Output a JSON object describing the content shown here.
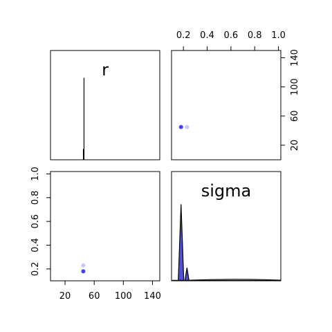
{
  "chart_data": {
    "type": "pairs",
    "variables": [
      "r",
      "sigma"
    ],
    "r_axis": {
      "lim": [
        0,
        150
      ],
      "ticks": [
        20,
        60,
        100,
        140
      ],
      "tick_labels": [
        "20",
        "60",
        "100",
        "140"
      ]
    },
    "sigma_axis": {
      "lim": [
        0.1,
        1.02
      ],
      "ticks": [
        0.2,
        0.4,
        0.6,
        0.8,
        1.0
      ],
      "tick_labels": [
        "0.2",
        "0.4",
        "0.6",
        "0.8",
        "1.0"
      ]
    },
    "panels": [
      {
        "row": 0,
        "col": 0,
        "kind": "density",
        "var": "r",
        "label": "r",
        "color": "#000000",
        "spikes": [
          {
            "x": 46,
            "height": 0.75
          }
        ]
      },
      {
        "row": 0,
        "col": 1,
        "kind": "scatter",
        "x": "sigma",
        "y": "r",
        "points": [
          {
            "x": 0.18,
            "y": 45,
            "opacity": 0.85
          },
          {
            "x": 0.23,
            "y": 45,
            "opacity": 0.25
          }
        ]
      },
      {
        "row": 1,
        "col": 0,
        "kind": "scatter",
        "x": "r",
        "y": "sigma",
        "points": [
          {
            "x": 45,
            "y": 0.18,
            "opacity": 0.85
          },
          {
            "x": 45,
            "y": 0.23,
            "opacity": 0.25
          }
        ]
      },
      {
        "row": 1,
        "col": 1,
        "kind": "density",
        "var": "sigma",
        "label": "sigma",
        "line_color": "#000000",
        "fill_color": "#3333cc",
        "spikes": [
          {
            "x": 0.18,
            "height": 0.7
          },
          {
            "x": 0.23,
            "height": 0.12
          }
        ],
        "baseline_level": 0.01
      }
    ],
    "point_color": "#2222ee",
    "axes": {
      "r_on_bottom_of_col": 0,
      "r_on_right_of_row": 0,
      "sigma_on_top_of_col": 1,
      "sigma_on_left_of_row": 1
    }
  }
}
